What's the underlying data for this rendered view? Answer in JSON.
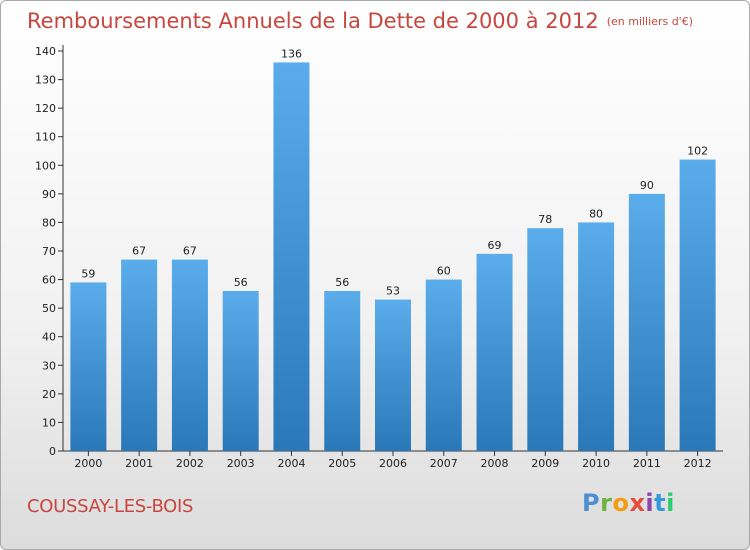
{
  "header": {
    "title": "Remboursements Annuels de la Dette de 2000 à 2012",
    "subtitle": "(en milliers d'€)"
  },
  "footer": {
    "place": "COUSSAY-LES-BOIS",
    "logo": "Proxiti"
  },
  "colors": {
    "title": "#c8463f",
    "bar_top": "#5aacea",
    "bar_bottom": "#2a78b8"
  },
  "chart_data": {
    "type": "bar",
    "title": "Remboursements Annuels de la Dette de 2000 à 2012",
    "xlabel": "",
    "ylabel": "",
    "categories": [
      "2000",
      "2001",
      "2002",
      "2003",
      "2004",
      "2005",
      "2006",
      "2007",
      "2008",
      "2009",
      "2010",
      "2011",
      "2012"
    ],
    "values": [
      59,
      67,
      67,
      56,
      136,
      56,
      53,
      60,
      69,
      78,
      80,
      90,
      102
    ],
    "ylim": [
      0,
      140
    ],
    "yticks": [
      0,
      10,
      20,
      30,
      40,
      50,
      60,
      70,
      80,
      90,
      100,
      110,
      120,
      130,
      140
    ],
    "grid": false,
    "legend": "none"
  }
}
